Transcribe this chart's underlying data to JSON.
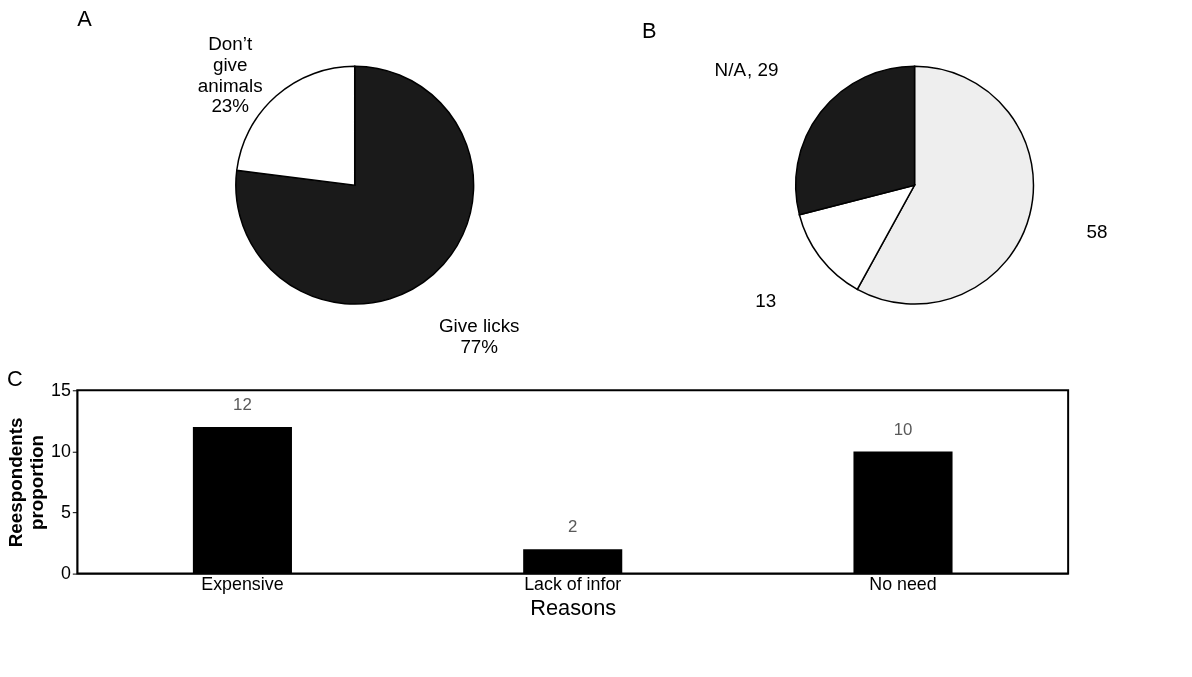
{
  "chart_data": [
    {
      "type": "pie",
      "title": "A",
      "categories": [
        "Give licks",
        "Don’t give animals"
      ],
      "values": [
        77,
        23
      ],
      "value_labels": [
        "77%",
        "23%"
      ],
      "colors": [
        "#1a1a1a",
        "#ffffff"
      ]
    },
    {
      "type": "pie",
      "title": "B",
      "categories": [
        null,
        null,
        "N/A"
      ],
      "values": [
        58,
        13,
        29
      ],
      "value_labels": [
        "58",
        "13",
        ", 29"
      ],
      "colors": [
        "#eeeeee",
        "#ffffff",
        "#1a1a1a"
      ]
    },
    {
      "type": "bar",
      "title": "C",
      "categories": [
        "Expensive",
        "Lack of infor",
        "No need"
      ],
      "values": [
        12,
        2,
        10
      ],
      "color": "#000000",
      "ylim": [
        0,
        15
      ],
      "yticks": [
        0,
        5,
        10,
        15
      ],
      "xlabel": "Reasons",
      "ylabel": "Reespondents proportion",
      "data_labels": true,
      "grid": false
    }
  ]
}
